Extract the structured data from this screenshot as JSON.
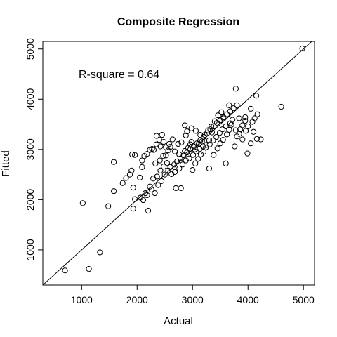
{
  "chart_data": {
    "type": "scatter",
    "title": "Composite Regression",
    "xlabel": "Actual",
    "ylabel": "Fitted",
    "annotation": "R-square = 0.64",
    "xlim": [
      300,
      5200
    ],
    "ylim": [
      300,
      5150
    ],
    "xticks": [
      1000,
      2000,
      3000,
      4000,
      5000
    ],
    "yticks": [
      1000,
      2000,
      3000,
      4000,
      5000
    ],
    "xtick_labels": [
      "1000",
      "2000",
      "3000",
      "4000",
      "5000"
    ],
    "ytick_labels": [
      "1000",
      "2000",
      "3000",
      "4000",
      "5000"
    ],
    "reference_line": {
      "slope": 1,
      "intercept": 0
    },
    "grid": false,
    "point_style": "open-circle",
    "points": [
      [
        700,
        590
      ],
      [
        1130,
        620
      ],
      [
        1330,
        950
      ],
      [
        1020,
        1930
      ],
      [
        1480,
        1870
      ],
      [
        1580,
        2170
      ],
      [
        1580,
        2750
      ],
      [
        1740,
        2330
      ],
      [
        1800,
        2430
      ],
      [
        1870,
        2500
      ],
      [
        1900,
        2580
      ],
      [
        1910,
        2900
      ],
      [
        1960,
        2890
      ],
      [
        1930,
        1820
      ],
      [
        1960,
        2010
      ],
      [
        1930,
        2240
      ],
      [
        2050,
        2440
      ],
      [
        2090,
        2650
      ],
      [
        2090,
        2780
      ],
      [
        2130,
        2870
      ],
      [
        2180,
        2910
      ],
      [
        2230,
        2990
      ],
      [
        2270,
        3010
      ],
      [
        2350,
        3270
      ],
      [
        2400,
        3190
      ],
      [
        2450,
        3290
      ],
      [
        2200,
        1780
      ],
      [
        2110,
        1990
      ],
      [
        2180,
        2090
      ],
      [
        2260,
        2200
      ],
      [
        2320,
        2130
      ],
      [
        2380,
        2290
      ],
      [
        2440,
        2370
      ],
      [
        2500,
        2500
      ],
      [
        2560,
        2580
      ],
      [
        2600,
        2650
      ],
      [
        2670,
        2700
      ],
      [
        2720,
        2760
      ],
      [
        2780,
        2820
      ],
      [
        2840,
        2880
      ],
      [
        2900,
        2940
      ],
      [
        2960,
        3000
      ],
      [
        3020,
        3060
      ],
      [
        3080,
        3120
      ],
      [
        3140,
        3180
      ],
      [
        3200,
        3250
      ],
      [
        3260,
        3320
      ],
      [
        3320,
        3400
      ],
      [
        3380,
        3460
      ],
      [
        3440,
        3530
      ],
      [
        3500,
        3580
      ],
      [
        3560,
        3640
      ],
      [
        3620,
        3700
      ],
      [
        3680,
        3760
      ],
      [
        3740,
        3820
      ],
      [
        3800,
        3880
      ],
      [
        2700,
        2230
      ],
      [
        2790,
        2230
      ],
      [
        2520,
        2880
      ],
      [
        2600,
        3050
      ],
      [
        2640,
        3200
      ],
      [
        2740,
        3110
      ],
      [
        2800,
        3140
      ],
      [
        2860,
        3480
      ],
      [
        2900,
        3360
      ],
      [
        2960,
        3100
      ],
      [
        3000,
        2590
      ],
      [
        3050,
        2720
      ],
      [
        3100,
        2810
      ],
      [
        3150,
        2900
      ],
      [
        3200,
        2950
      ],
      [
        3250,
        3090
      ],
      [
        3300,
        3180
      ],
      [
        3300,
        2620
      ],
      [
        3380,
        2890
      ],
      [
        3450,
        3020
      ],
      [
        3500,
        3120
      ],
      [
        3550,
        3190
      ],
      [
        3600,
        2720
      ],
      [
        3620,
        3300
      ],
      [
        3660,
        3390
      ],
      [
        3700,
        3490
      ],
      [
        3760,
        3060
      ],
      [
        3800,
        3260
      ],
      [
        3860,
        3400
      ],
      [
        3900,
        3480
      ],
      [
        3950,
        3570
      ],
      [
        3990,
        2920
      ],
      [
        4050,
        3120
      ],
      [
        4100,
        3350
      ],
      [
        4160,
        3210
      ],
      [
        4230,
        3200
      ],
      [
        3780,
        4210
      ],
      [
        4150,
        4070
      ],
      [
        4050,
        3810
      ],
      [
        3950,
        3640
      ],
      [
        3840,
        3620
      ],
      [
        3660,
        3880
      ],
      [
        3560,
        3620
      ],
      [
        3520,
        3740
      ],
      [
        3460,
        3680
      ],
      [
        3400,
        3560
      ],
      [
        3340,
        3460
      ],
      [
        3280,
        3380
      ],
      [
        3220,
        3290
      ],
      [
        4600,
        3850
      ],
      [
        4980,
        5010
      ],
      [
        2060,
        2040
      ],
      [
        2150,
        2130
      ],
      [
        2230,
        2260
      ],
      [
        2290,
        2420
      ],
      [
        2360,
        2460
      ],
      [
        2420,
        2580
      ],
      [
        2480,
        2660
      ],
      [
        2540,
        2730
      ],
      [
        2620,
        2510
      ],
      [
        2680,
        2550
      ],
      [
        2760,
        2620
      ],
      [
        2820,
        2700
      ],
      [
        2880,
        2780
      ],
      [
        2940,
        2820
      ],
      [
        3010,
        2890
      ],
      [
        3070,
        2960
      ],
      [
        3130,
        3010
      ],
      [
        3190,
        3060
      ],
      [
        2330,
        2720
      ],
      [
        2410,
        2780
      ],
      [
        2470,
        2870
      ],
      [
        2520,
        3040
      ],
      [
        2580,
        3110
      ],
      [
        2300,
        2990
      ],
      [
        2350,
        3100
      ],
      [
        2420,
        3060
      ],
      [
        2480,
        3150
      ],
      [
        2560,
        2980
      ],
      [
        2760,
        2900
      ],
      [
        2860,
        2970
      ],
      [
        2920,
        3030
      ],
      [
        2980,
        3150
      ],
      [
        3040,
        3000
      ],
      [
        3110,
        3110
      ],
      [
        3170,
        3160
      ],
      [
        3240,
        3040
      ],
      [
        3310,
        3100
      ],
      [
        3370,
        3180
      ],
      [
        3430,
        3250
      ],
      [
        3490,
        3330
      ],
      [
        3540,
        3400
      ],
      [
        3600,
        3460
      ],
      [
        3680,
        3520
      ],
      [
        3720,
        3590
      ],
      [
        3780,
        3380
      ],
      [
        3840,
        3310
      ],
      [
        3900,
        3200
      ],
      [
        3960,
        3370
      ],
      [
        4000,
        3460
      ],
      [
        4080,
        3550
      ],
      [
        4120,
        3620
      ],
      [
        4170,
        3700
      ],
      [
        3350,
        3340
      ],
      [
        3140,
        3290
      ],
      [
        3060,
        3370
      ],
      [
        2980,
        3420
      ],
      [
        2880,
        3280
      ],
      [
        2680,
        2960
      ]
    ]
  }
}
